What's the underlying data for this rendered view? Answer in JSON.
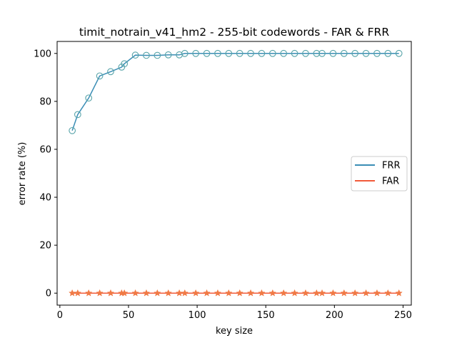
{
  "chart_data": {
    "type": "line",
    "title": "timit_notrain_v41_hm2 - 255-bit codewords - FAR & FRR",
    "xlabel": "key size",
    "ylabel": "error rate (%)",
    "xlim": [
      -2,
      256
    ],
    "ylim": [
      -5,
      105
    ],
    "xticks": [
      0,
      50,
      100,
      150,
      200,
      250
    ],
    "yticks": [
      0,
      20,
      40,
      60,
      80,
      100
    ],
    "grid": false,
    "legend_position": "center-right",
    "x": [
      9,
      13,
      21,
      29,
      37,
      45,
      47,
      55,
      63,
      71,
      79,
      87,
      91,
      99,
      107,
      115,
      123,
      131,
      139,
      147,
      155,
      163,
      171,
      179,
      187,
      191,
      199,
      207,
      215,
      223,
      231,
      239,
      247
    ],
    "series": [
      {
        "name": "FRR",
        "color": "#3a8db5",
        "marker_color": "#56a3a8",
        "marker": "circle",
        "values": [
          67.8,
          74.5,
          81.4,
          90.6,
          92.4,
          94.3,
          95.7,
          99.3,
          99.2,
          99.2,
          99.4,
          99.4,
          100,
          100,
          100,
          100,
          100,
          100,
          100,
          100,
          100,
          100,
          100,
          100,
          100,
          100,
          100,
          100,
          100,
          100,
          100,
          100,
          100
        ]
      },
      {
        "name": "FAR",
        "color": "#f15a3a",
        "marker_color": "#f07a45",
        "marker": "star",
        "values": [
          0,
          0,
          0,
          0,
          0,
          0,
          0,
          0,
          0,
          0,
          0,
          0,
          0,
          0,
          0,
          0,
          0,
          0,
          0,
          0,
          0,
          0,
          0,
          0,
          0,
          0,
          0,
          0,
          0,
          0,
          0,
          0,
          0
        ]
      }
    ]
  }
}
